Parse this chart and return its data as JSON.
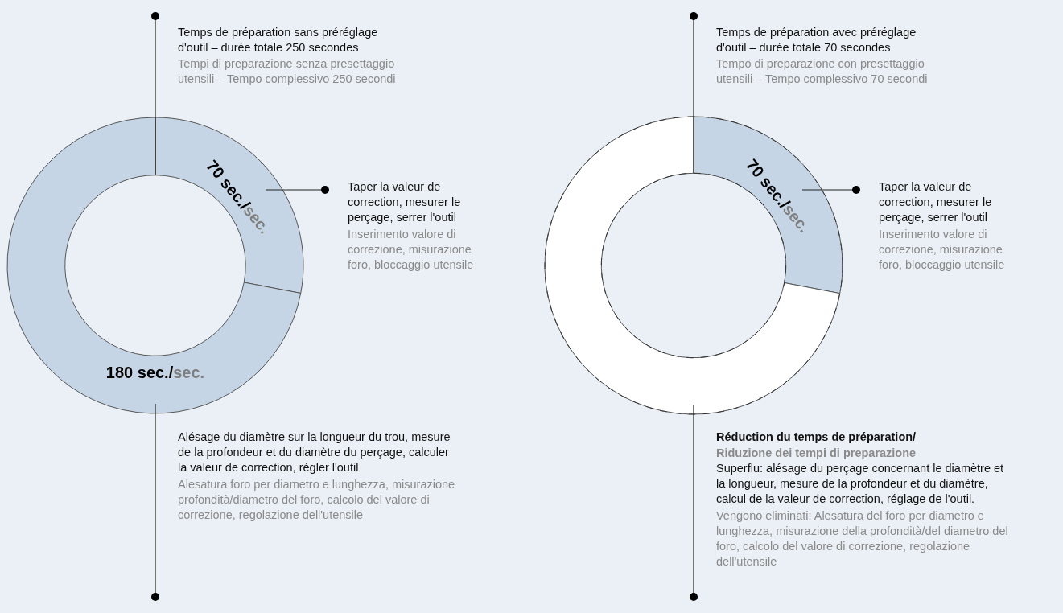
{
  "chart_data": [
    {
      "type": "donut",
      "categories": [
        null,
        null
      ],
      "values": [
        70,
        180
      ],
      "colors": [
        "#c5d5e5",
        "#c5d5e5"
      ],
      "value_labels": [
        "70 sec./sec.",
        "180 sec./sec."
      ],
      "annotations": [
        "Temps de préparation sans préréglage d'outil – durée totale 250 secondes",
        "Tempi di preparazione senza presettaggio utensili – Tempo complessivo 250 secondi",
        "Taper la valeur de correction, mesurer le perçage, serrer l'outil",
        "Inserimento valore di correzione, misurazione foro, bloccaggio utensile",
        "Alésage du diamètre sur la longueur du trou, mesure de la profondeur et du diamètre du perçage, calculer la valeur de correction, régler l'outil",
        "Alesatura foro per diametro e lunghezza, misurazione profondità/diametro del foro, calcolo del valore di correzione, regolazione dell'utensile"
      ]
    },
    {
      "type": "donut",
      "categories": [
        null,
        null
      ],
      "values": [
        70,
        180
      ],
      "colors": [
        "#c5d5e5",
        "#ffffff"
      ],
      "value_labels": [
        "70 sec./sec.",
        null
      ],
      "line_style": "dashed",
      "annotations": [
        "Temps de préparation avec préréglage d'outil – durée totale 70 secondes",
        "Tempo di preparazione con presettaggio utensili – Tempo complessivo 70 secondi",
        "Taper la valeur de correction, mesurer le perçage, serrer l'outil",
        "Inserimento valore di correzione, misurazione foro, bloccaggio utensile",
        "Réduction du temps de préparation/",
        "Riduzione dei tempi di preparazione",
        "Superflu: alésage du perçage concernant le diamètre et la longueur, mesure de la profondeur et du diamètre, calcul de la valeur de correction, réglage de l'outil.",
        "Vengono eliminati: Alesatura del foro per diametro e lunghezza, misurazione della profondità/del diametro del foro, calcolo del valore di correzione, regolazione dell'utensile"
      ]
    }
  ]
}
